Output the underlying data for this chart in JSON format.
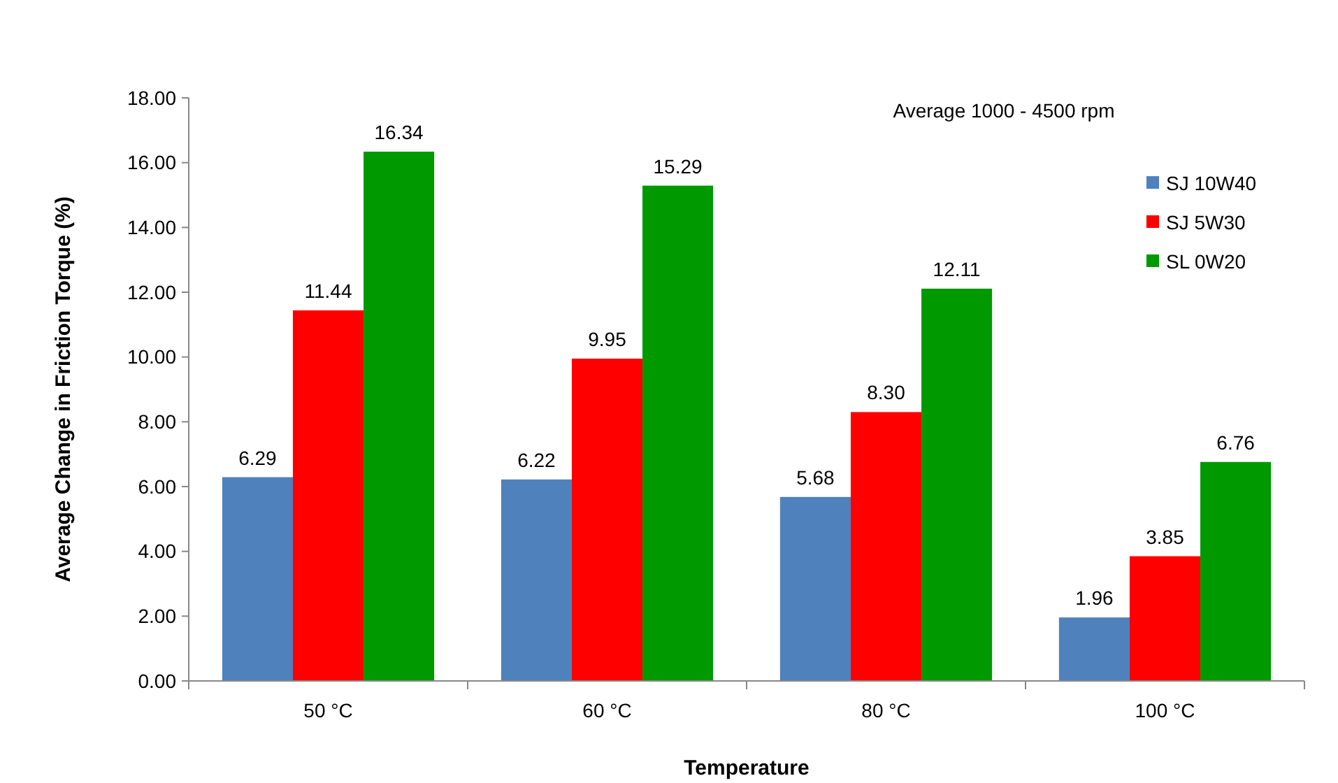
{
  "chart_data": {
    "type": "bar",
    "xlabel": "Temperature",
    "ylabel": "Average Change in Friction Torque (%)",
    "categories": [
      "50 °C",
      "60 °C",
      "80 °C",
      "100 °C"
    ],
    "series": [
      {
        "name": "SJ 10W40",
        "color": "#4f81bd",
        "values": [
          6.29,
          6.22,
          5.68,
          1.96
        ],
        "value_labels": [
          "6.29",
          "6.22",
          "5.68",
          "1.96"
        ]
      },
      {
        "name": "SJ 5W30",
        "color": "#ff0000",
        "values": [
          11.44,
          9.95,
          8.3,
          3.85
        ],
        "value_labels": [
          "11.44",
          "9.95",
          "8.30",
          "3.85"
        ]
      },
      {
        "name": "SL 0W20",
        "color": "#009900",
        "values": [
          16.34,
          15.29,
          12.11,
          6.76
        ],
        "value_labels": [
          "16.34",
          "15.29",
          "12.11",
          "6.76"
        ]
      }
    ],
    "ylim": [
      0,
      18
    ],
    "yticks": [
      {
        "value": 0,
        "label": "0.00"
      },
      {
        "value": 2,
        "label": "2.00"
      },
      {
        "value": 4,
        "label": "4.00"
      },
      {
        "value": 6,
        "label": "6.00"
      },
      {
        "value": 8,
        "label": "8.00"
      },
      {
        "value": 10,
        "label": "10.00"
      },
      {
        "value": 12,
        "label": "12.00"
      },
      {
        "value": 14,
        "label": "14.00"
      },
      {
        "value": 16,
        "label": "16.00"
      },
      {
        "value": 18,
        "label": "18.00"
      }
    ],
    "annotations": [
      "Average 1000 - 4500 rpm"
    ],
    "grid": false,
    "legend": "top right"
  }
}
